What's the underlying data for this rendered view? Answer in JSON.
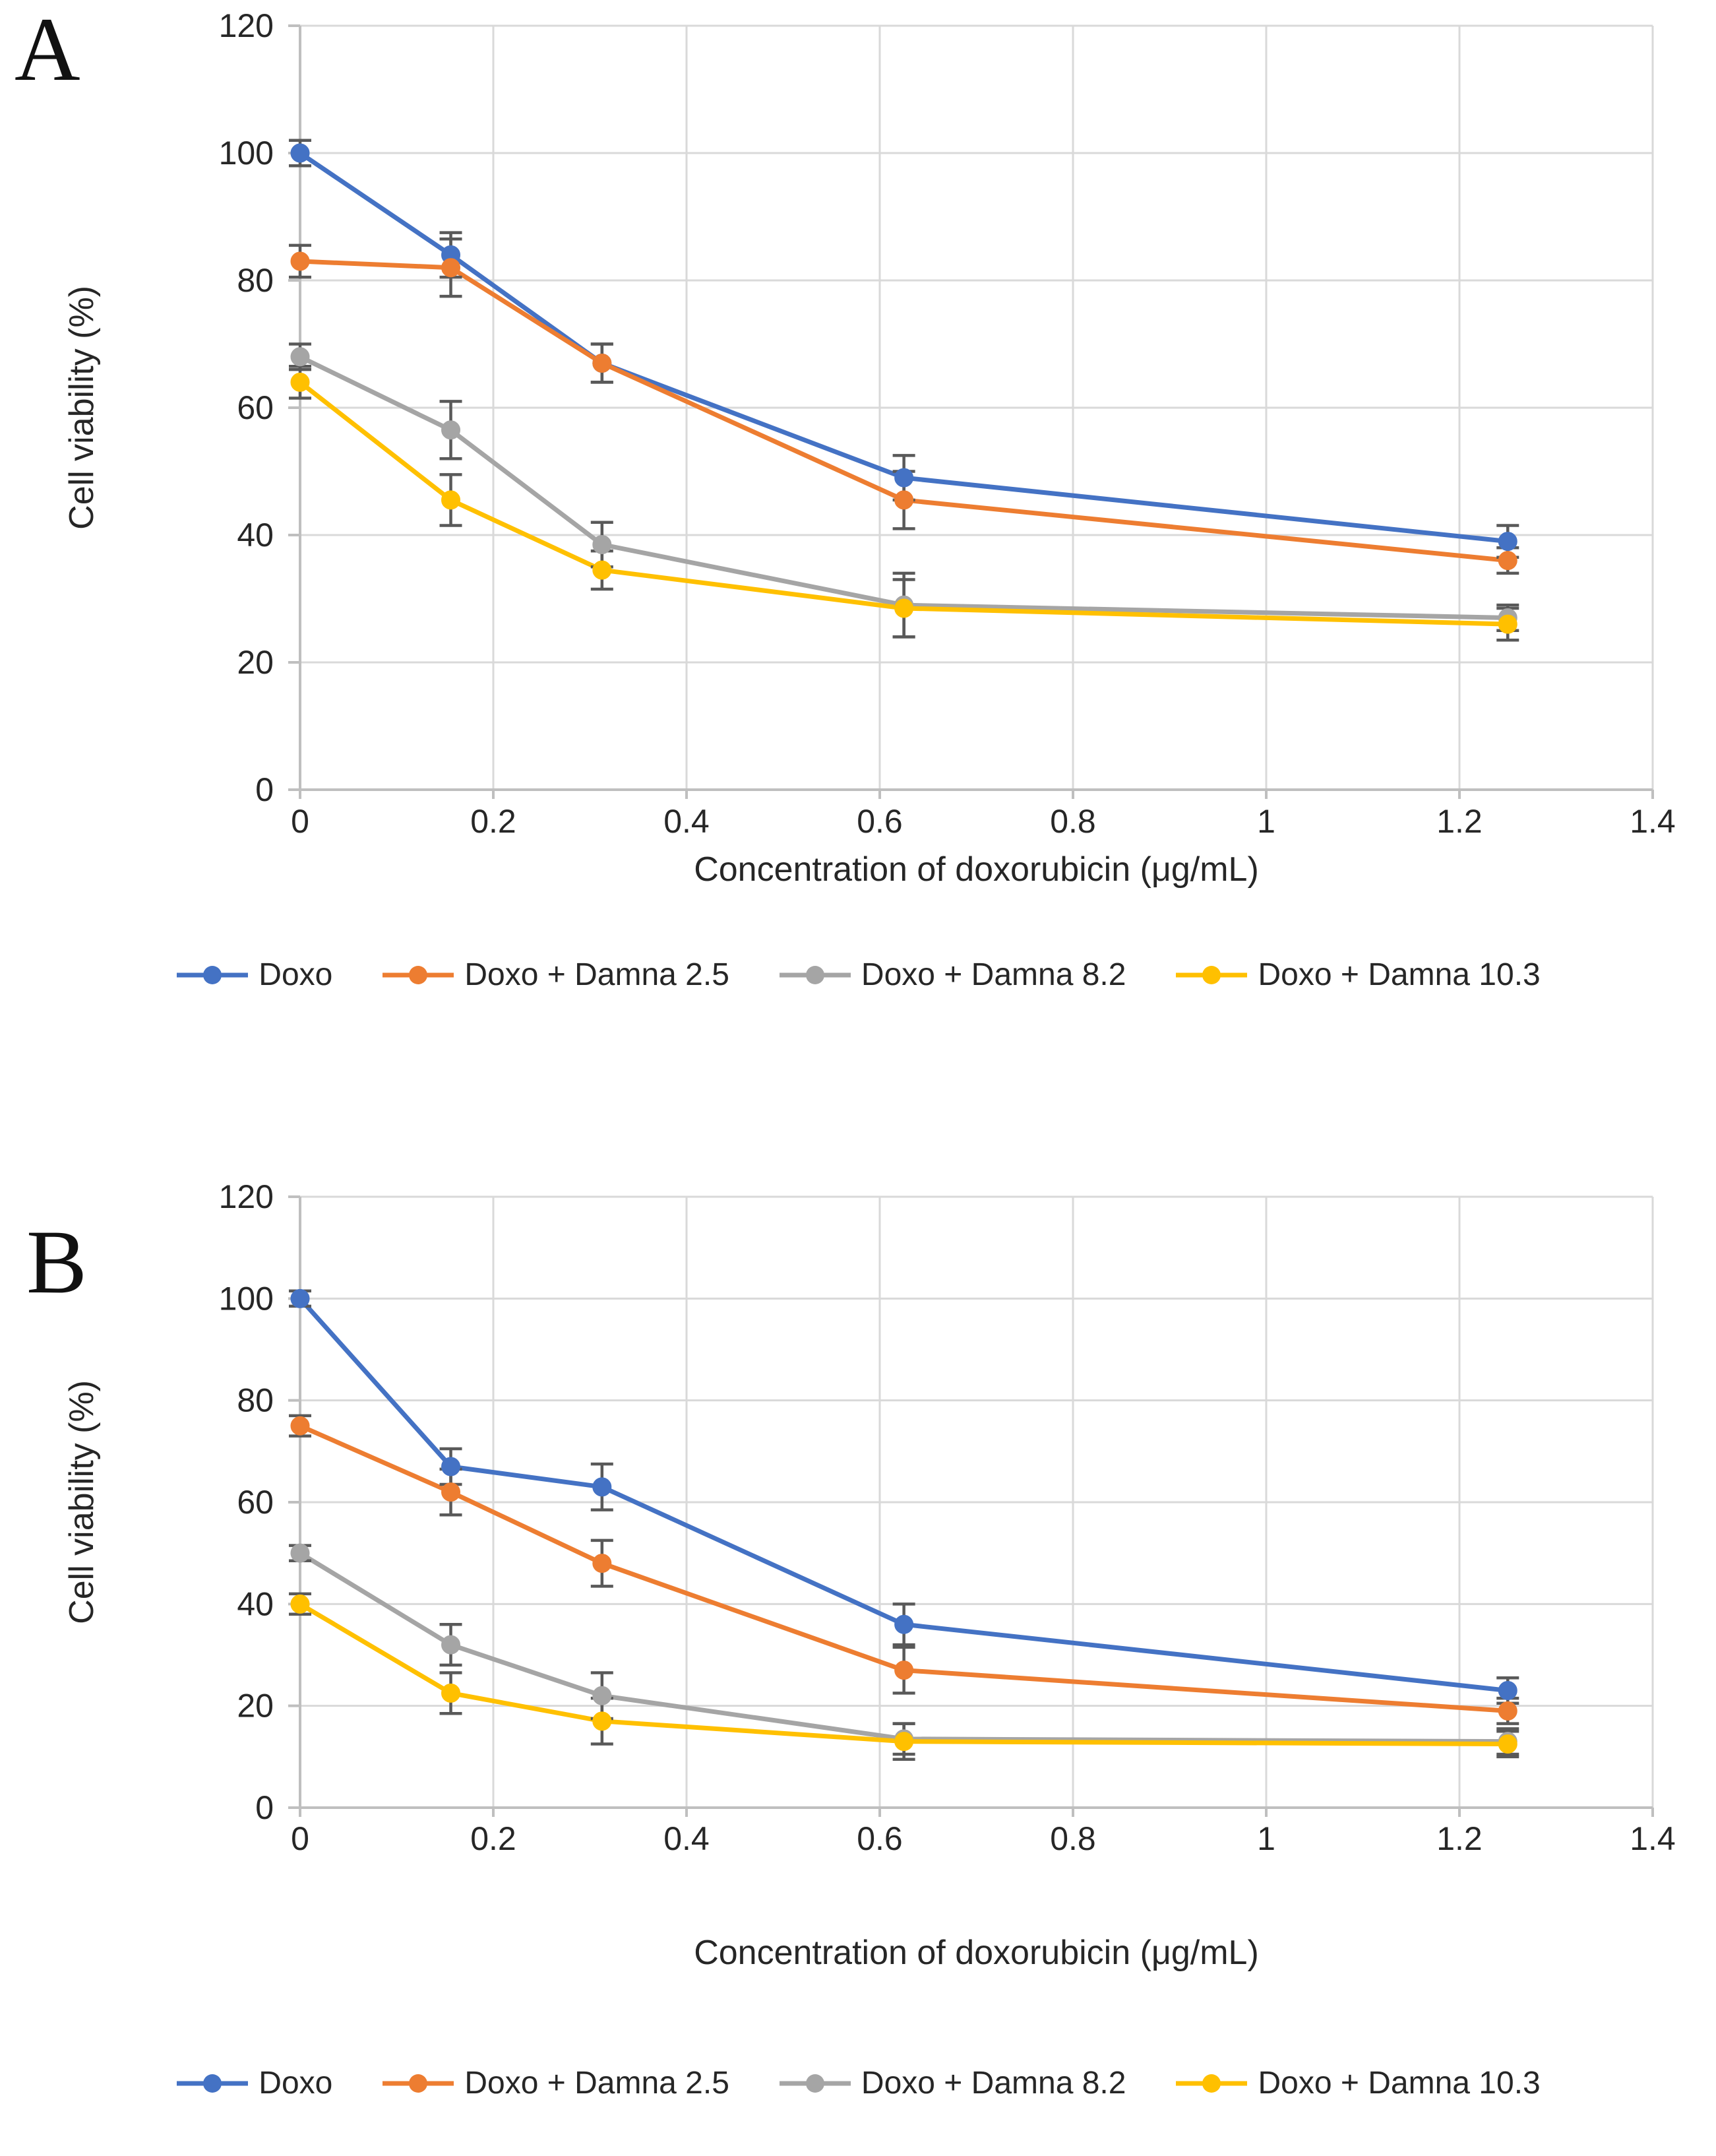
{
  "panels": {
    "a_label": "A",
    "b_label": "B"
  },
  "chart_data": [
    {
      "panel": "A",
      "type": "line",
      "title": "",
      "xlabel": "Concentration of doxorubicin (μg/mL)",
      "ylabel": "Cell viability (%)",
      "x": [
        0,
        0.156,
        0.3125,
        0.625,
        1.25
      ],
      "xlim": [
        0,
        1.4
      ],
      "ylim": [
        0,
        120
      ],
      "x_ticks": [
        0,
        0.2,
        0.4,
        0.6,
        0.8,
        1,
        1.2,
        1.4
      ],
      "x_tick_labels": [
        "0",
        "0.2",
        "0.4",
        "0.6",
        "0.8",
        "1",
        "1.2",
        "1.4"
      ],
      "y_ticks": [
        0,
        20,
        40,
        60,
        80,
        100,
        120
      ],
      "y_tick_labels": [
        "0",
        "20",
        "40",
        "60",
        "80",
        "100",
        "120"
      ],
      "grid": true,
      "legend_position": "bottom",
      "series": [
        {
          "name": "Doxo",
          "color": "#4472C4",
          "values": [
            100,
            84,
            67,
            49,
            39
          ],
          "errors": [
            2,
            3.5,
            3,
            3.5,
            2.5
          ]
        },
        {
          "name": "Doxo + Damna 2.5",
          "color": "#ED7D31",
          "values": [
            83,
            82,
            67,
            45.5,
            36
          ],
          "errors": [
            2.5,
            4.5,
            3,
            4.5,
            2
          ]
        },
        {
          "name": "Doxo + Damna 8.2",
          "color": "#A5A5A5",
          "values": [
            68,
            56.5,
            38.5,
            29,
            27
          ],
          "errors": [
            2,
            4.5,
            3.5,
            5,
            2
          ]
        },
        {
          "name": "Doxo + Damna 10.3",
          "color": "#FFC000",
          "values": [
            64,
            45.5,
            34.5,
            28.5,
            26
          ],
          "errors": [
            2.5,
            4,
            3,
            4.5,
            2.5
          ]
        }
      ]
    },
    {
      "panel": "B",
      "type": "line",
      "title": "",
      "xlabel": "Concentration of doxorubicin (μg/mL)",
      "ylabel": "Cell viability (%)",
      "x": [
        0,
        0.156,
        0.3125,
        0.625,
        1.25
      ],
      "xlim": [
        0,
        1.4
      ],
      "ylim": [
        0,
        120
      ],
      "x_ticks": [
        0,
        0.2,
        0.4,
        0.6,
        0.8,
        1,
        1.2,
        1.4
      ],
      "x_tick_labels": [
        "0",
        "0.2",
        "0.4",
        "0.6",
        "0.8",
        "1",
        "1.2",
        "1.4"
      ],
      "y_ticks": [
        0,
        20,
        40,
        60,
        80,
        100,
        120
      ],
      "y_tick_labels": [
        "0",
        "20",
        "40",
        "60",
        "80",
        "100",
        "120"
      ],
      "grid": true,
      "legend_position": "bottom",
      "series": [
        {
          "name": "Doxo",
          "color": "#4472C4",
          "values": [
            100,
            67,
            63,
            36,
            23
          ],
          "errors": [
            1.5,
            3.5,
            4.5,
            4,
            2.5
          ]
        },
        {
          "name": "Doxo + Damna 2.5",
          "color": "#ED7D31",
          "values": [
            75,
            62,
            48,
            27,
            19
          ],
          "errors": [
            2,
            4.5,
            4.5,
            4.5,
            2.5
          ]
        },
        {
          "name": "Doxo + Damna 8.2",
          "color": "#A5A5A5",
          "values": [
            50,
            32,
            22,
            13.5,
            13
          ],
          "errors": [
            1.5,
            4,
            4.5,
            3,
            2.5
          ]
        },
        {
          "name": "Doxo + Damna 10.3",
          "color": "#FFC000",
          "values": [
            40,
            22.5,
            17,
            13,
            12.5
          ],
          "errors": [
            2,
            4,
            4.5,
            3.5,
            2.5
          ]
        }
      ]
    }
  ],
  "style_colors": {
    "gridline": "#D9D9D9",
    "axis": "#BFBFBF",
    "error_bar": "#595959",
    "text": "#262626"
  }
}
